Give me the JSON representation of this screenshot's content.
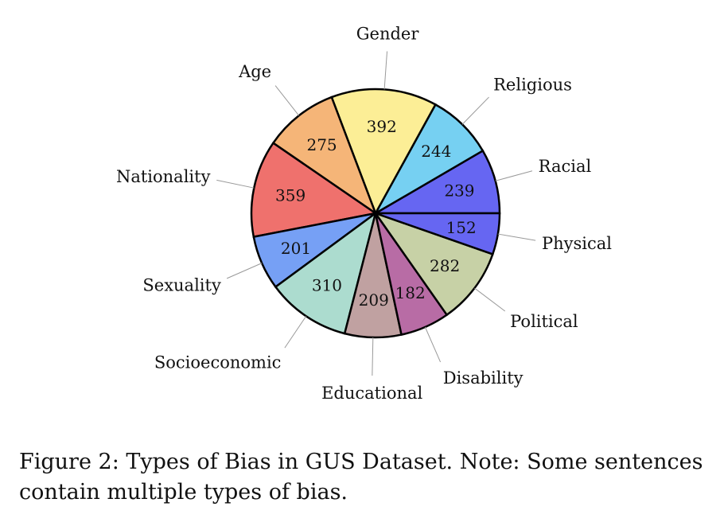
{
  "chart_data": {
    "type": "pie",
    "title": "",
    "slices": [
      {
        "label": "Racial",
        "value": 239,
        "color": "#6666f2"
      },
      {
        "label": "Religious",
        "value": 244,
        "color": "#76d0f2"
      },
      {
        "label": "Gender",
        "value": 392,
        "color": "#fcee96"
      },
      {
        "label": "Age",
        "value": 275,
        "color": "#f5b578"
      },
      {
        "label": "Nationality",
        "value": 359,
        "color": "#ef716d"
      },
      {
        "label": "Sexuality",
        "value": 201,
        "color": "#76a0f5"
      },
      {
        "label": "Socioeconomic",
        "value": 310,
        "color": "#acdccf"
      },
      {
        "label": "Educational",
        "value": 209,
        "color": "#c0a1a1"
      },
      {
        "label": "Disability",
        "value": 182,
        "color": "#b86ca5"
      },
      {
        "label": "Political",
        "value": 282,
        "color": "#c7d1a6"
      },
      {
        "label": "Physical",
        "value": 152,
        "color": "#6666f2"
      }
    ]
  },
  "caption": "Figure 2: Types of Bias in GUS Dataset. Note: Some sentences contain multiple types of bias."
}
